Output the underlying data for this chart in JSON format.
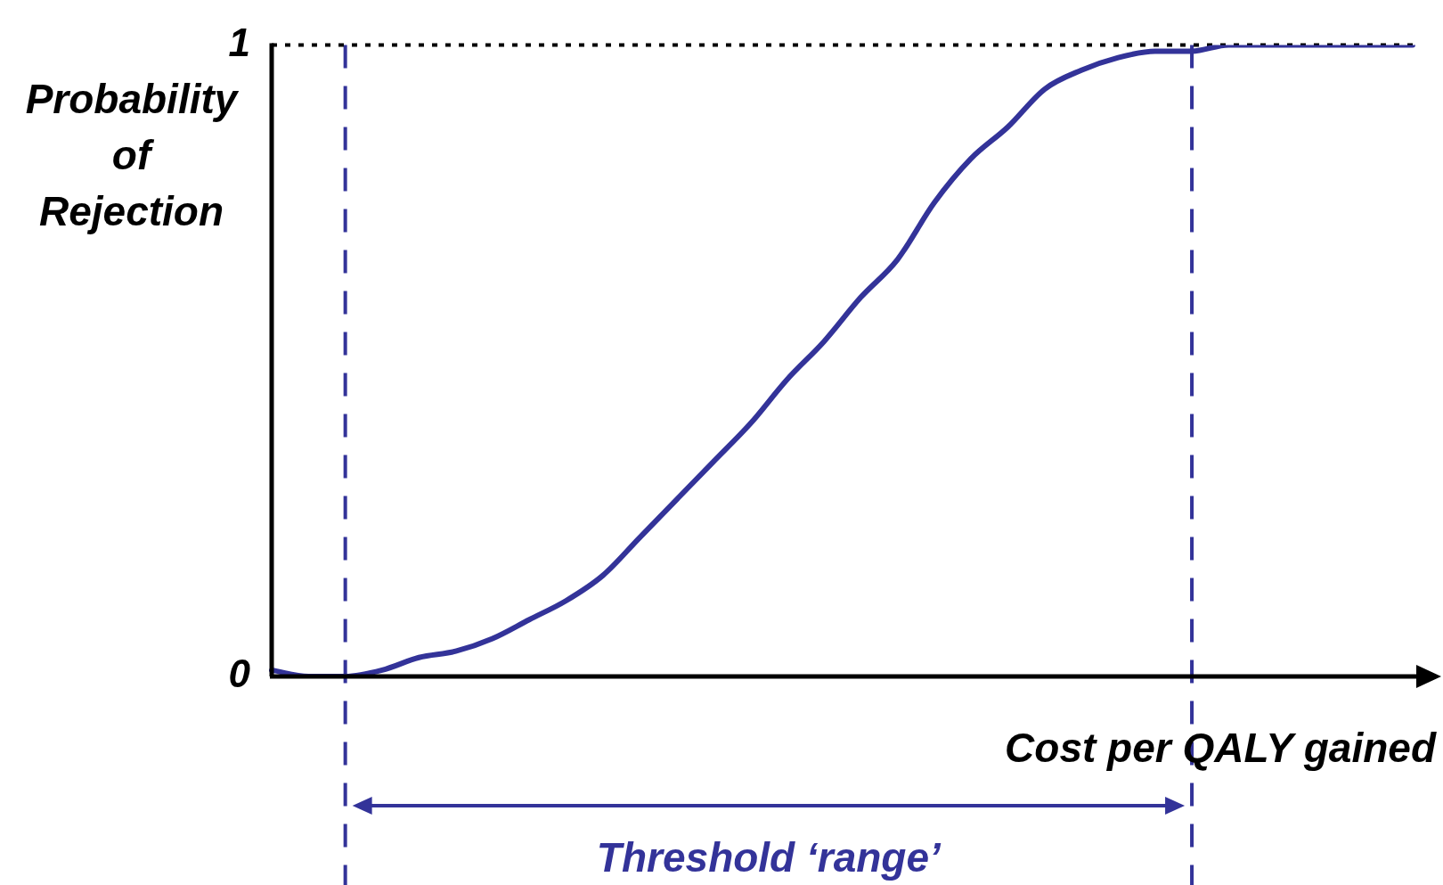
{
  "chart_data": {
    "type": "line",
    "ylabel": "Probability of Rejection",
    "xlabel": "Cost per QALY gained",
    "categories": [
      null,
      null,
      null,
      null,
      null,
      null,
      null,
      null,
      null,
      null,
      null,
      null,
      null,
      null,
      null,
      null,
      null,
      null,
      null,
      null,
      null,
      null,
      null,
      null,
      null,
      null,
      null,
      null,
      null,
      null,
      null,
      null
    ],
    "series": [
      {
        "color": "#333399",
        "values": [
          0.01,
          0.0,
          0.0,
          0.01,
          0.03,
          0.04,
          0.06,
          0.09,
          0.12,
          0.16,
          0.22,
          0.28,
          0.34,
          0.4,
          0.47,
          0.53,
          0.6,
          0.66,
          0.75,
          0.82,
          0.87,
          0.93,
          0.96,
          0.98,
          0.99,
          0.99,
          1.0,
          1.0,
          1.0,
          1.0,
          1.0,
          1.0
        ]
      }
    ],
    "ylim": [
      0,
      1
    ],
    "yticks": [
      0,
      1
    ],
    "grid": false,
    "legend": false,
    "marker": "none",
    "line_style": "solid",
    "tick_labels": "y",
    "ref_lines": [
      {
        "axis": "y",
        "value": 1,
        "color": "#000000",
        "line_style": "dotted"
      }
    ],
    "annotations": [
      "Threshold ‘range’"
    ]
  }
}
